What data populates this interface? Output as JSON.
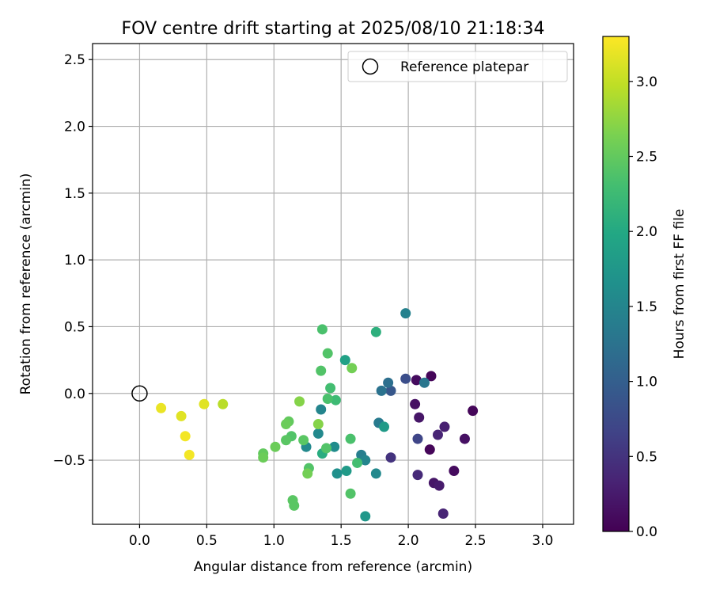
{
  "chart_data": {
    "type": "scatter",
    "title": "FOV centre drift starting at 2025/08/10 21:18:34",
    "xlabel": "Angular distance from reference (arcmin)",
    "ylabel": "Rotation from reference (arcmin)",
    "xlim": [
      -0.35,
      3.23
    ],
    "ylim": [
      -0.98,
      2.62
    ],
    "x_ticks": [
      0.0,
      0.5,
      1.0,
      1.5,
      2.0,
      2.5,
      3.0
    ],
    "x_tick_labels": [
      "0.0",
      "0.5",
      "1.0",
      "1.5",
      "2.0",
      "2.5",
      "3.0"
    ],
    "y_ticks": [
      -0.5,
      0.0,
      0.5,
      1.0,
      1.5,
      2.0,
      2.5
    ],
    "y_tick_labels": [
      "−0.5",
      "0.0",
      "0.5",
      "1.0",
      "1.5",
      "2.0",
      "2.5"
    ],
    "grid": true,
    "legend": {
      "placement": "top-right",
      "entries": [
        "Reference platepar"
      ]
    },
    "reference_point": {
      "x": 0.0,
      "y": 0.0,
      "label": "Reference platepar"
    },
    "colorbar": {
      "label": "Hours from first FF file",
      "range": [
        0.0,
        3.3
      ],
      "ticks": [
        0.0,
        0.5,
        1.0,
        1.5,
        2.0,
        2.5,
        3.0
      ],
      "tick_labels": [
        "0.0",
        "0.5",
        "1.0",
        "1.5",
        "2.0",
        "2.5",
        "3.0"
      ],
      "colormap": "viridis"
    },
    "points": [
      {
        "x": 2.17,
        "y": 0.13,
        "h": 0.05
      },
      {
        "x": 2.06,
        "y": 0.1,
        "h": 0.1
      },
      {
        "x": 2.48,
        "y": -0.13,
        "h": 0.05
      },
      {
        "x": 2.05,
        "y": -0.08,
        "h": 0.15
      },
      {
        "x": 2.08,
        "y": -0.18,
        "h": 0.2
      },
      {
        "x": 2.27,
        "y": -0.25,
        "h": 0.3
      },
      {
        "x": 2.22,
        "y": -0.31,
        "h": 0.35
      },
      {
        "x": 2.42,
        "y": -0.34,
        "h": 0.15
      },
      {
        "x": 2.16,
        "y": -0.42,
        "h": 0.05
      },
      {
        "x": 2.34,
        "y": -0.58,
        "h": 0.1
      },
      {
        "x": 2.07,
        "y": -0.61,
        "h": 0.4
      },
      {
        "x": 2.19,
        "y": -0.67,
        "h": 0.2
      },
      {
        "x": 2.23,
        "y": -0.69,
        "h": 0.25
      },
      {
        "x": 2.26,
        "y": -0.9,
        "h": 0.35
      },
      {
        "x": 2.07,
        "y": -0.34,
        "h": 0.7
      },
      {
        "x": 1.98,
        "y": 0.11,
        "h": 0.8
      },
      {
        "x": 1.87,
        "y": 0.02,
        "h": 0.9
      },
      {
        "x": 1.87,
        "y": -0.48,
        "h": 0.5
      },
      {
        "x": 1.98,
        "y": 0.6,
        "h": 1.45
      },
      {
        "x": 2.12,
        "y": 0.08,
        "h": 1.3
      },
      {
        "x": 1.8,
        "y": 0.02,
        "h": 1.25
      },
      {
        "x": 1.85,
        "y": 0.08,
        "h": 1.2
      },
      {
        "x": 1.78,
        "y": -0.22,
        "h": 1.35
      },
      {
        "x": 1.82,
        "y": -0.25,
        "h": 1.8
      },
      {
        "x": 1.65,
        "y": -0.46,
        "h": 1.4
      },
      {
        "x": 1.68,
        "y": -0.5,
        "h": 1.5
      },
      {
        "x": 1.76,
        "y": -0.6,
        "h": 1.55
      },
      {
        "x": 1.68,
        "y": -0.92,
        "h": 1.75
      },
      {
        "x": 1.53,
        "y": 0.25,
        "h": 1.9
      },
      {
        "x": 1.35,
        "y": -0.12,
        "h": 1.5
      },
      {
        "x": 1.33,
        "y": -0.3,
        "h": 1.55
      },
      {
        "x": 1.24,
        "y": -0.4,
        "h": 1.55
      },
      {
        "x": 1.45,
        "y": -0.4,
        "h": 1.6
      },
      {
        "x": 1.47,
        "y": -0.6,
        "h": 1.65
      },
      {
        "x": 1.54,
        "y": -0.58,
        "h": 1.8
      },
      {
        "x": 1.76,
        "y": 0.46,
        "h": 2.1
      },
      {
        "x": 1.36,
        "y": -0.45,
        "h": 2.05
      },
      {
        "x": 1.46,
        "y": -0.05,
        "h": 2.25
      },
      {
        "x": 1.42,
        "y": 0.04,
        "h": 2.3
      },
      {
        "x": 1.4,
        "y": -0.04,
        "h": 2.35
      },
      {
        "x": 1.39,
        "y": -0.41,
        "h": 2.4
      },
      {
        "x": 1.62,
        "y": -0.52,
        "h": 2.3
      },
      {
        "x": 1.57,
        "y": -0.34,
        "h": 2.35
      },
      {
        "x": 1.57,
        "y": -0.75,
        "h": 2.4
      },
      {
        "x": 1.36,
        "y": 0.48,
        "h": 2.35
      },
      {
        "x": 1.4,
        "y": 0.3,
        "h": 2.4
      },
      {
        "x": 1.35,
        "y": 0.17,
        "h": 2.4
      },
      {
        "x": 1.58,
        "y": 0.19,
        "h": 2.6
      },
      {
        "x": 1.14,
        "y": -0.8,
        "h": 2.45
      },
      {
        "x": 1.15,
        "y": -0.84,
        "h": 2.45
      },
      {
        "x": 1.26,
        "y": -0.56,
        "h": 2.4
      },
      {
        "x": 1.25,
        "y": -0.6,
        "h": 2.6
      },
      {
        "x": 1.22,
        "y": -0.35,
        "h": 2.45
      },
      {
        "x": 1.13,
        "y": -0.32,
        "h": 2.4
      },
      {
        "x": 1.09,
        "y": -0.35,
        "h": 2.45
      },
      {
        "x": 1.11,
        "y": -0.21,
        "h": 2.5
      },
      {
        "x": 1.09,
        "y": -0.23,
        "h": 2.55
      },
      {
        "x": 1.01,
        "y": -0.4,
        "h": 2.55
      },
      {
        "x": 0.92,
        "y": -0.45,
        "h": 2.5
      },
      {
        "x": 0.92,
        "y": -0.48,
        "h": 2.55
      },
      {
        "x": 1.19,
        "y": -0.06,
        "h": 2.7
      },
      {
        "x": 1.33,
        "y": -0.23,
        "h": 2.7
      },
      {
        "x": 0.62,
        "y": -0.08,
        "h": 2.95
      },
      {
        "x": 0.48,
        "y": -0.08,
        "h": 3.15
      },
      {
        "x": 0.16,
        "y": -0.11,
        "h": 3.2
      },
      {
        "x": 0.31,
        "y": -0.17,
        "h": 3.15
      },
      {
        "x": 0.34,
        "y": -0.32,
        "h": 3.25
      },
      {
        "x": 0.37,
        "y": -0.46,
        "h": 3.25
      }
    ]
  }
}
